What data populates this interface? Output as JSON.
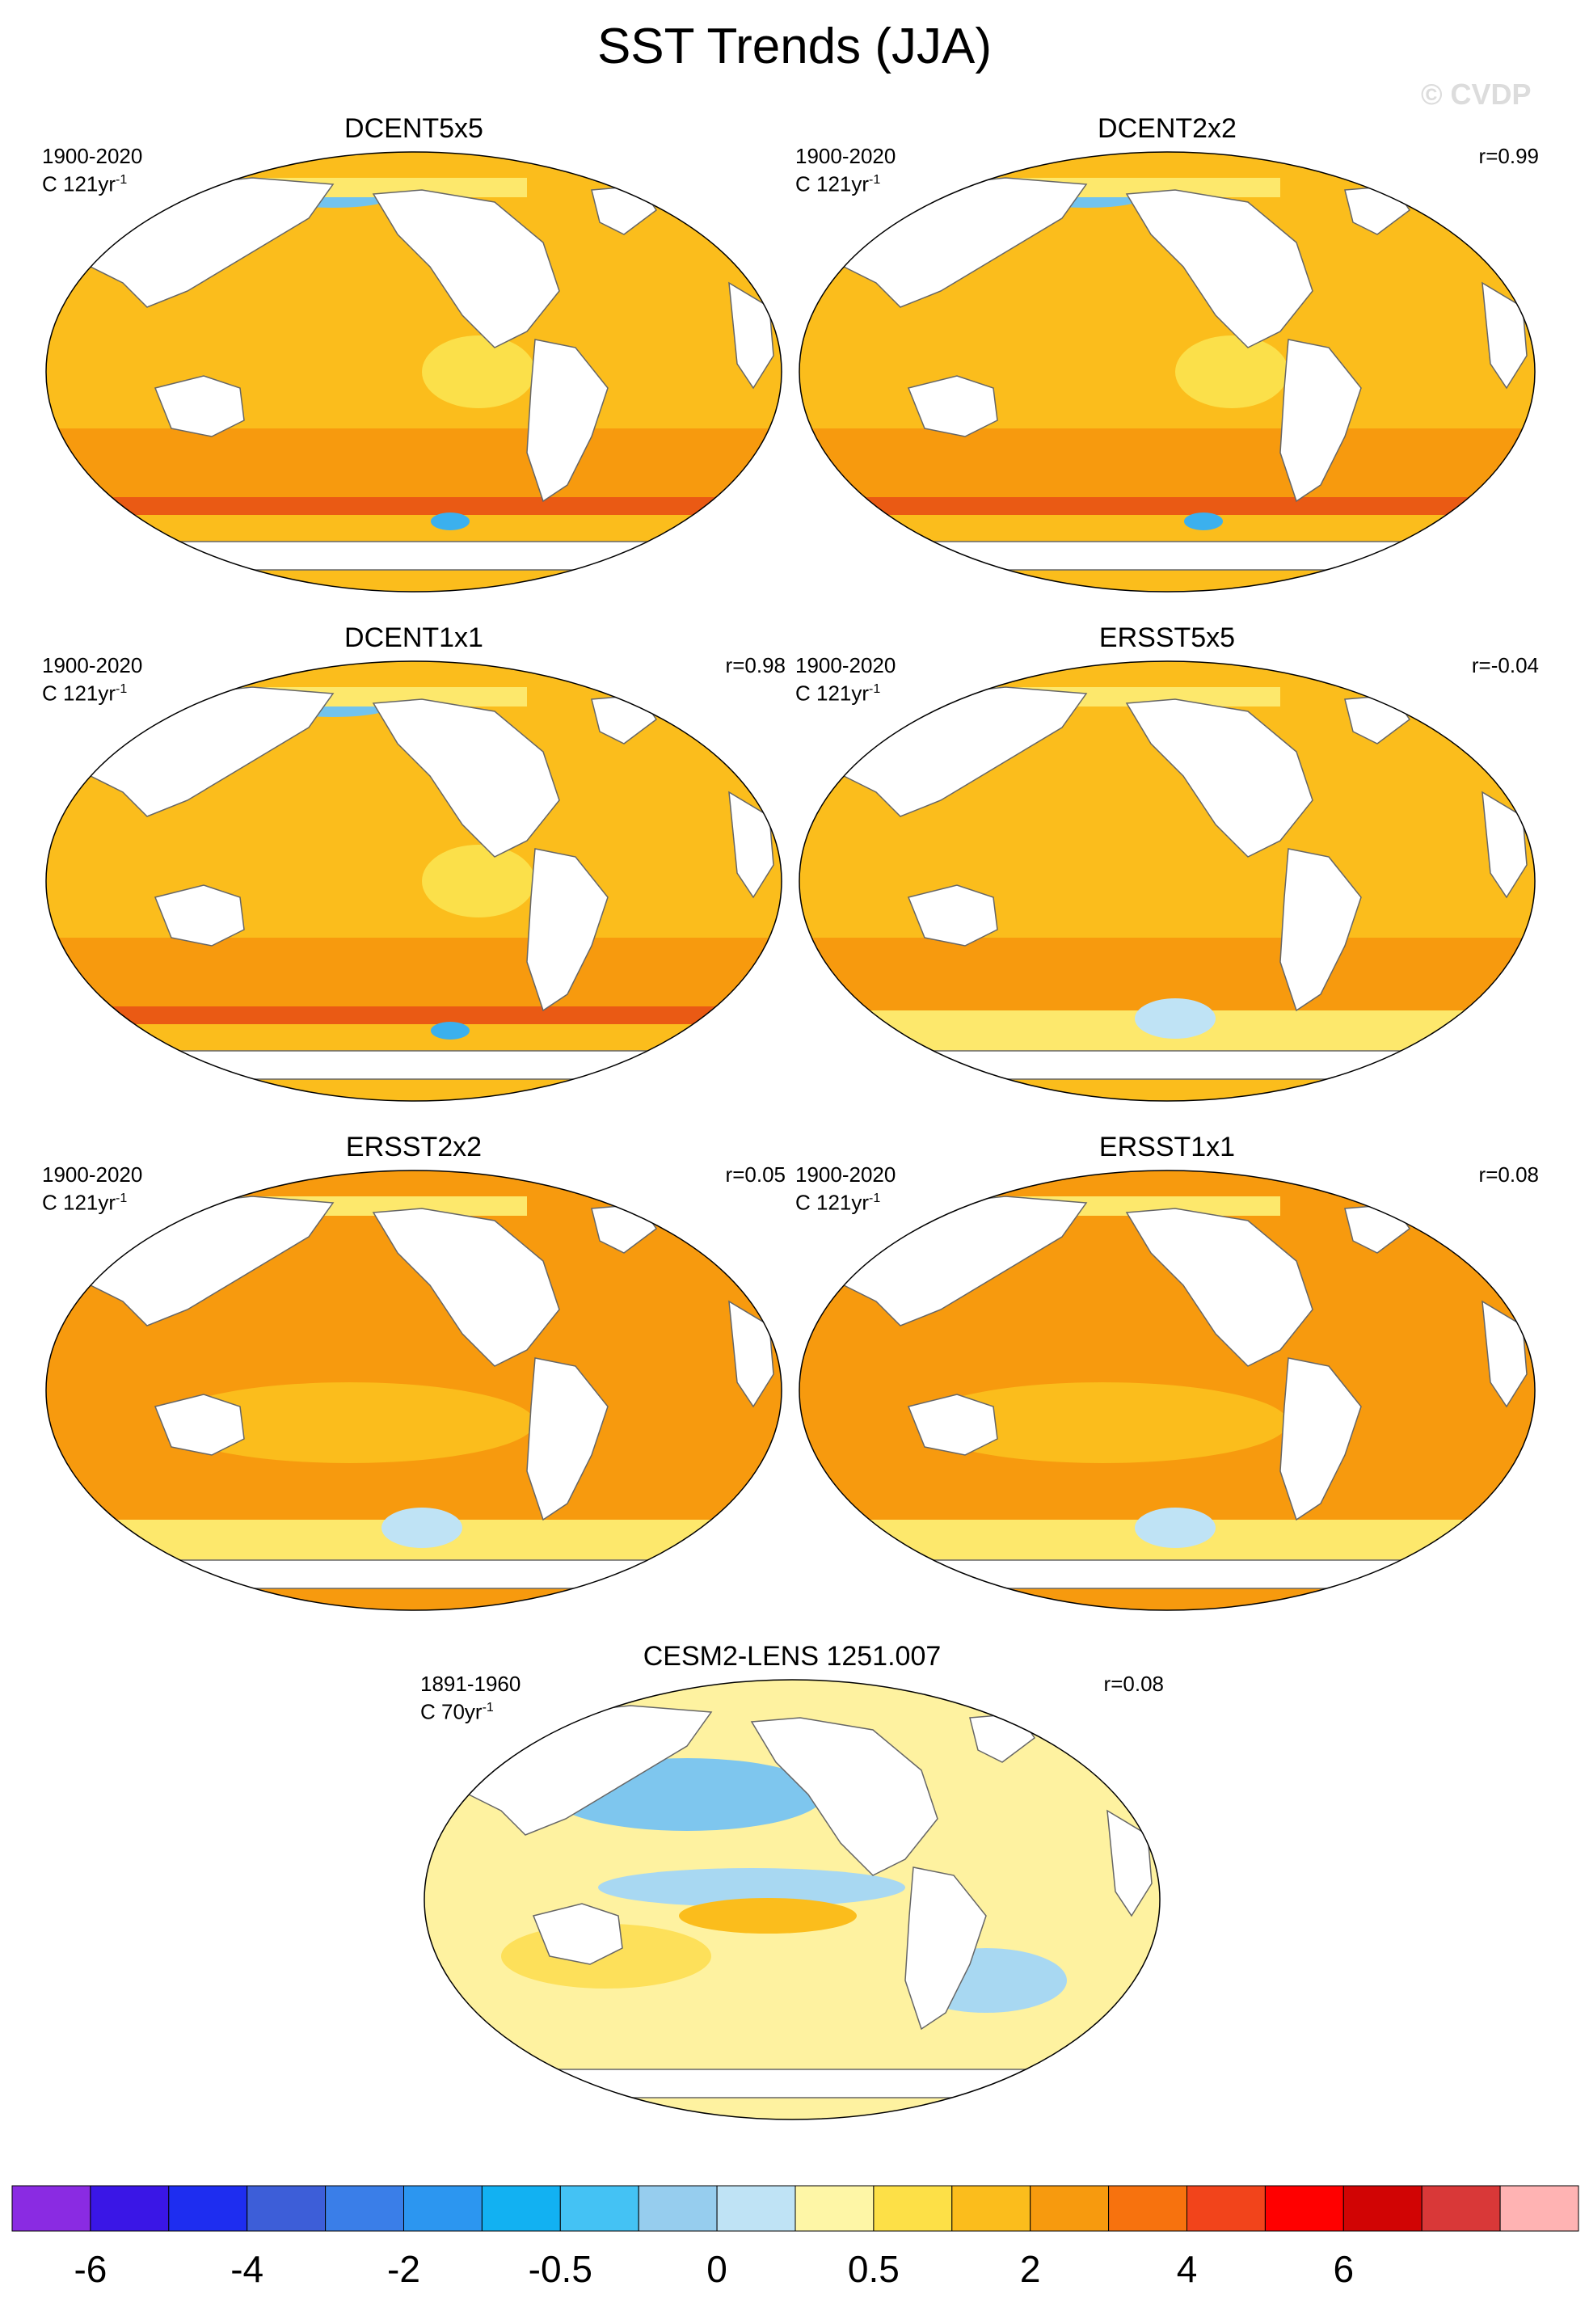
{
  "title": "SST Trends (JJA)",
  "watermark": "© CVDP",
  "chart_data": [
    {
      "type": "heatmap",
      "title": "DCENT5x5",
      "period": "1900-2020",
      "units": "C 121yr",
      "units_exp": "-1",
      "r": "",
      "base": "#fbbd1c",
      "features": [
        {
          "name": "south-band",
          "color": "#f79a0e"
        },
        {
          "name": "southern-streak",
          "color": "#ea5a14"
        },
        {
          "name": "south-eq-pool",
          "color": "#fbe04a"
        },
        {
          "name": "ross-blue",
          "color": "#3bb0ee"
        },
        {
          "name": "arctic-blue",
          "color": "#72c3ee"
        },
        {
          "name": "arctic-yellow",
          "color": "#fde86c"
        }
      ]
    },
    {
      "type": "heatmap",
      "title": "DCENT2x2",
      "period": "1900-2020",
      "units": "C 121yr",
      "units_exp": "-1",
      "r": "r=0.99",
      "base": "#fbbd1c",
      "features": [
        {
          "name": "south-band",
          "color": "#f79a0e"
        },
        {
          "name": "southern-streak",
          "color": "#ea5a14"
        },
        {
          "name": "south-eq-pool",
          "color": "#fbe04a"
        },
        {
          "name": "ross-blue",
          "color": "#3bb0ee"
        },
        {
          "name": "arctic-blue",
          "color": "#72c3ee"
        },
        {
          "name": "arctic-yellow",
          "color": "#fde86c"
        }
      ]
    },
    {
      "type": "heatmap",
      "title": "DCENT1x1",
      "period": "1900-2020",
      "units": "C 121yr",
      "units_exp": "-1",
      "r": "r=0.98",
      "base": "#fbbd1c",
      "features": [
        {
          "name": "south-band",
          "color": "#f79a0e"
        },
        {
          "name": "southern-streak",
          "color": "#ea5a14"
        },
        {
          "name": "south-eq-pool",
          "color": "#fbe04a"
        },
        {
          "name": "ross-blue",
          "color": "#3bb0ee"
        },
        {
          "name": "arctic-blue",
          "color": "#72c3ee"
        },
        {
          "name": "arctic-yellow",
          "color": "#fde86c"
        }
      ]
    },
    {
      "type": "heatmap",
      "title": "ERSST5x5",
      "period": "1900-2020",
      "units": "C 121yr",
      "units_exp": "-1",
      "r": "r=-0.04",
      "base": "#fbbd1c",
      "features": [
        {
          "name": "south-band",
          "color": "#f79a0e"
        },
        {
          "name": "antarctic-yellow",
          "color": "#fde86c"
        },
        {
          "name": "pacific-pale",
          "color": "#bfe3f5"
        },
        {
          "name": "arctic-red",
          "color": "#e2331a"
        },
        {
          "name": "arctic-yellow",
          "color": "#fde86c"
        }
      ]
    },
    {
      "type": "heatmap",
      "title": "ERSST2x2",
      "period": "1900-2020",
      "units": "C 121yr",
      "units_exp": "-1",
      "r": "r=0.05",
      "base": "#f79a0e",
      "features": [
        {
          "name": "midlat-yellow",
          "color": "#fbbd1c"
        },
        {
          "name": "antarctic-yellow",
          "color": "#fde86c"
        },
        {
          "name": "pacific-pale",
          "color": "#bfe3f5"
        },
        {
          "name": "arctic-red",
          "color": "#e2331a"
        },
        {
          "name": "arctic-yellow",
          "color": "#fde86c"
        }
      ]
    },
    {
      "type": "heatmap",
      "title": "ERSST1x1",
      "period": "1900-2020",
      "units": "C 121yr",
      "units_exp": "-1",
      "r": "r=0.08",
      "base": "#f79a0e",
      "features": [
        {
          "name": "midlat-yellow",
          "color": "#fbbd1c"
        },
        {
          "name": "antarctic-yellow",
          "color": "#fde86c"
        },
        {
          "name": "pacific-pale",
          "color": "#bfe3f5"
        },
        {
          "name": "arctic-red",
          "color": "#e2331a"
        },
        {
          "name": "arctic-yellow",
          "color": "#fde86c"
        }
      ]
    },
    {
      "type": "heatmap",
      "title": "CESM2-LENS 1251.007",
      "period": "1891-1960",
      "units": "C 70yr",
      "units_exp": "-1",
      "r": "r=0.08",
      "base": "#fef2a0",
      "features": [
        {
          "name": "north-pacific-blue",
          "color": "#7ec6ee"
        },
        {
          "name": "gulf-alaska-blue",
          "color": "#3aa9ec"
        },
        {
          "name": "equatorial-blue",
          "color": "#a8d8f2"
        },
        {
          "name": "equatorial-orange",
          "color": "#fbbd1c"
        },
        {
          "name": "se-pacific-blue",
          "color": "#a8d8f2"
        },
        {
          "name": "subtropic-yellow",
          "color": "#fde05a"
        }
      ]
    }
  ],
  "colorbar": {
    "colors": [
      "#8a2be2",
      "#3a16e6",
      "#1e2df0",
      "#3d5ed8",
      "#3a7ee8",
      "#2c96f0",
      "#12b1f2",
      "#44c2f4",
      "#96cdee",
      "#bfe3f5",
      "#fef6a6",
      "#fde047",
      "#fbbd1c",
      "#f79a0e",
      "#f7720e",
      "#f2441b",
      "#ff0000",
      "#d10404",
      "#d93838",
      "#ffb3b3"
    ],
    "labels": [
      "-6",
      "-4",
      "-2",
      "-0.5",
      "0",
      "0.5",
      "2",
      "4",
      "6"
    ],
    "label_after_box": [
      1,
      3,
      5,
      7,
      9,
      11,
      13,
      15,
      17
    ]
  }
}
